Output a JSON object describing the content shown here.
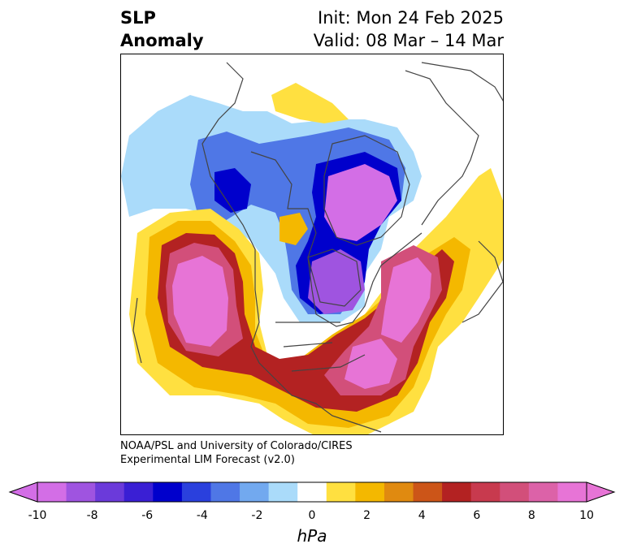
{
  "header": {
    "title_line1": "SLP",
    "title_line2": "Anomaly",
    "init": "Init: Mon 24 Feb 2025",
    "valid": "Valid: 08 Mar – 14 Mar"
  },
  "credit": {
    "line1": "NOAA/PSL and University of Colorado/CIRES",
    "line2": "Experimental LIM Forecast (v2.0)"
  },
  "colorbar": {
    "unit": "hPa",
    "levels": [
      -10,
      -9,
      -8,
      -7,
      -6,
      -5,
      -4,
      -3,
      -2,
      -1,
      1,
      2,
      3,
      4,
      5,
      6,
      7,
      8,
      9,
      10
    ],
    "colors": [
      "#d36ee6",
      "#9f54e0",
      "#6b3ada",
      "#3a1fd4",
      "#0000cc",
      "#2a40dd",
      "#4f77e6",
      "#72a9ef",
      "#aadbfa",
      "#ffffff",
      "#ffe040",
      "#f4b800",
      "#e08a10",
      "#cc5518",
      "#b32222",
      "#c83a4e",
      "#d24f7a",
      "#dc62a8",
      "#e774d6"
    ],
    "tick_labels": [
      "-10",
      "-8",
      "-6",
      "-4",
      "-2",
      "0",
      "2",
      "4",
      "6",
      "8",
      "10"
    ]
  },
  "map_colors": {
    "neg_weak": "#aadbfa",
    "neg_mid": "#4f77e6",
    "neg_strong": "#0000cc",
    "neg_extreme": "#d36ee6",
    "pos_weak": "#ffe040",
    "pos_mid": "#f4b800",
    "pos_orange": "#e08a10",
    "pos_red": "#b32222",
    "pos_pink": "#d24f7a",
    "pos_extreme": "#e774d6",
    "coast": "#444444"
  }
}
